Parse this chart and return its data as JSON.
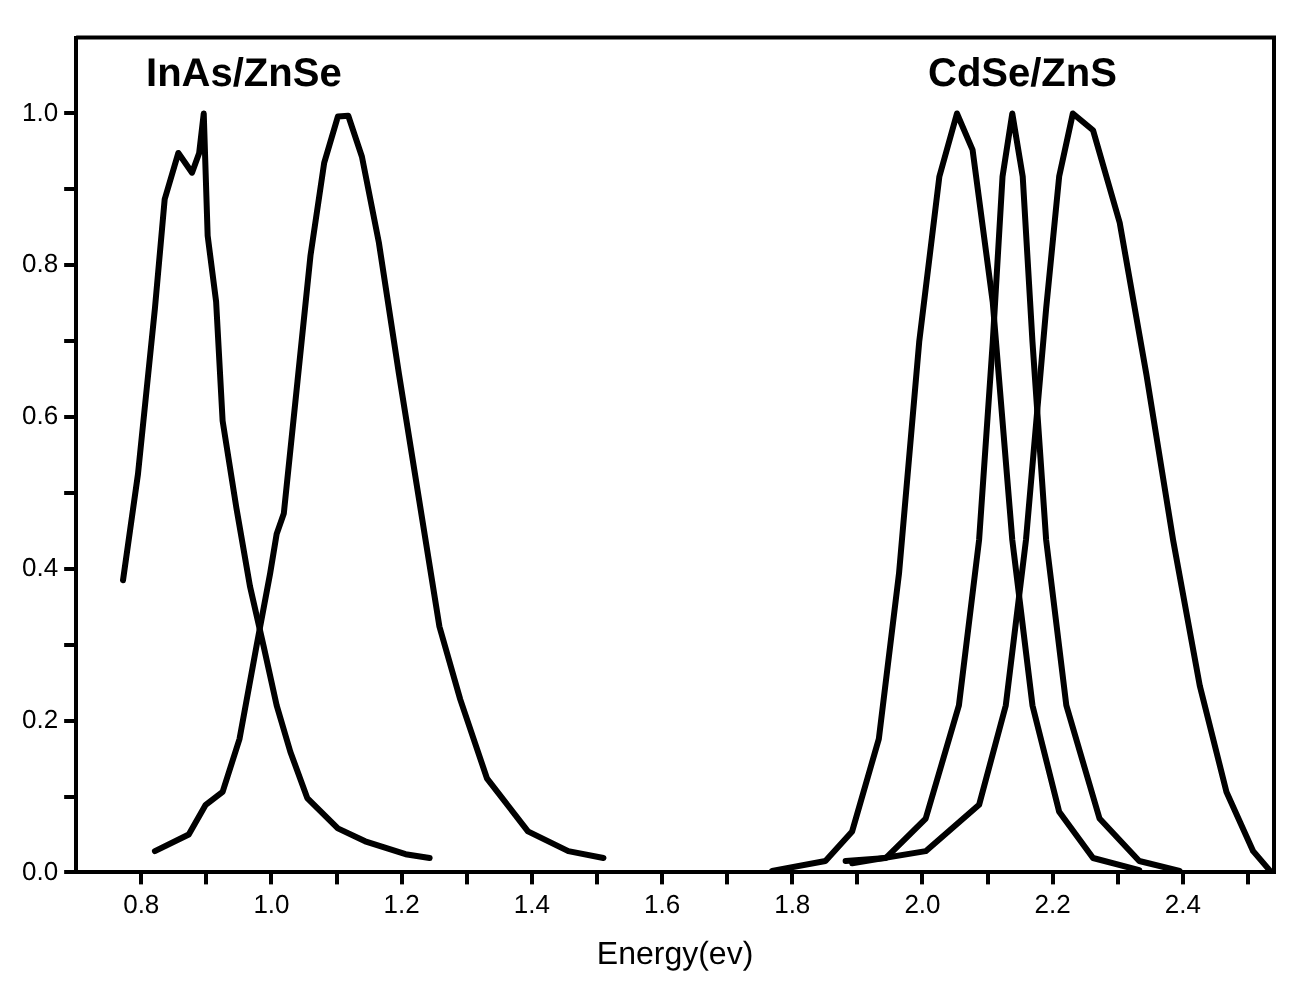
{
  "chart_data": {
    "type": "line",
    "xlabel": "Energy(ev)",
    "xlim": [
      0.7,
      2.54
    ],
    "ylim": [
      0,
      1.1
    ],
    "xticks": [
      {
        "value": 0.8,
        "label": "0.8"
      },
      {
        "value": 0.9,
        "label": null
      },
      {
        "value": 1.0,
        "label": "1.0"
      },
      {
        "value": 1.1,
        "label": null
      },
      {
        "value": 1.2,
        "label": "1.2"
      },
      {
        "value": 1.3,
        "label": null
      },
      {
        "value": 1.4,
        "label": "1.4"
      },
      {
        "value": 1.5,
        "label": null
      },
      {
        "value": 1.6,
        "label": "1.6"
      },
      {
        "value": 1.7,
        "label": null
      },
      {
        "value": 1.8,
        "label": "1.8"
      },
      {
        "value": 1.9,
        "label": null
      },
      {
        "value": 2.0,
        "label": "2.0"
      },
      {
        "value": 2.1,
        "label": null
      },
      {
        "value": 2.2,
        "label": "2.2"
      },
      {
        "value": 2.3,
        "label": null
      },
      {
        "value": 2.4,
        "label": "2.4"
      },
      {
        "value": 2.5,
        "label": null
      }
    ],
    "yticks": [
      {
        "value": 0,
        "label": "0.0"
      },
      {
        "value": 0.1,
        "label": null
      },
      {
        "value": 0.2,
        "label": "0.2"
      },
      {
        "value": 0.3,
        "label": null
      },
      {
        "value": 0.4,
        "label": "0.4"
      },
      {
        "value": 0.5,
        "label": null
      },
      {
        "value": 0.6,
        "label": "0.6"
      },
      {
        "value": 0.7,
        "label": null
      },
      {
        "value": 0.8,
        "label": "0.8"
      },
      {
        "value": 0.9,
        "label": null
      },
      {
        "value": 1.0,
        "label": "1.0"
      }
    ],
    "grid": false,
    "legend": false,
    "marker": "none",
    "line_style": "solid",
    "annotations": [
      "InAs/ZnSe",
      "CdSe/ZnS"
    ],
    "series": [
      {
        "color": "#000000",
        "x": [
          0.772,
          0.795,
          0.821,
          0.836,
          0.857,
          0.878,
          0.889,
          0.896,
          0.902,
          0.915,
          0.925,
          0.946,
          0.967,
          0.988,
          1.008,
          1.029,
          1.055,
          1.102,
          1.144,
          1.206,
          1.243
        ],
        "values": [
          0.385,
          0.525,
          0.743,
          0.887,
          0.948,
          0.922,
          0.948,
          1.0,
          0.839,
          0.752,
          0.595,
          0.481,
          0.377,
          0.298,
          0.22,
          0.159,
          0.098,
          0.058,
          0.041,
          0.024,
          0.019
        ]
      },
      {
        "color": "#000000",
        "x": [
          0.821,
          0.873,
          0.899,
          0.925,
          0.951,
          0.977,
          0.998,
          1.008,
          1.019,
          1.04,
          1.06,
          1.081,
          1.102,
          1.118,
          1.139,
          1.165,
          1.196,
          1.227,
          1.258,
          1.29,
          1.331,
          1.394,
          1.456,
          1.51
        ],
        "values": [
          0.028,
          0.05,
          0.089,
          0.106,
          0.176,
          0.298,
          0.394,
          0.446,
          0.473,
          0.647,
          0.813,
          0.935,
          0.996,
          0.997,
          0.943,
          0.83,
          0.656,
          0.49,
          0.324,
          0.228,
          0.124,
          0.054,
          0.028,
          0.019
        ]
      },
      {
        "color": "#000000",
        "x": [
          1.769,
          1.851,
          1.892,
          1.933,
          1.964,
          1.995,
          2.026,
          2.053,
          2.077,
          2.108,
          2.138,
          2.169,
          2.21,
          2.262,
          2.333
        ],
        "values": [
          0.002,
          0.015,
          0.054,
          0.176,
          0.394,
          0.699,
          0.917,
          1.0,
          0.952,
          0.751,
          0.438,
          0.22,
          0.08,
          0.019,
          0.003
        ]
      },
      {
        "color": "#000000",
        "x": [
          1.882,
          1.944,
          2.005,
          2.056,
          2.087,
          2.108,
          2.123,
          2.138,
          2.154,
          2.169,
          2.19,
          2.221,
          2.272,
          2.333,
          2.395
        ],
        "values": [
          0.015,
          0.019,
          0.071,
          0.22,
          0.438,
          0.699,
          0.917,
          1.0,
          0.917,
          0.699,
          0.438,
          0.22,
          0.071,
          0.015,
          0.002
        ]
      },
      {
        "color": "#000000",
        "x": [
          1.892,
          2.005,
          2.087,
          2.128,
          2.159,
          2.19,
          2.21,
          2.231,
          2.262,
          2.303,
          2.344,
          2.385,
          2.426,
          2.467,
          2.508,
          2.533
        ],
        "values": [
          0.012,
          0.028,
          0.089,
          0.22,
          0.438,
          0.743,
          0.917,
          1.0,
          0.978,
          0.856,
          0.656,
          0.438,
          0.246,
          0.106,
          0.028,
          0.003
        ]
      }
    ]
  }
}
